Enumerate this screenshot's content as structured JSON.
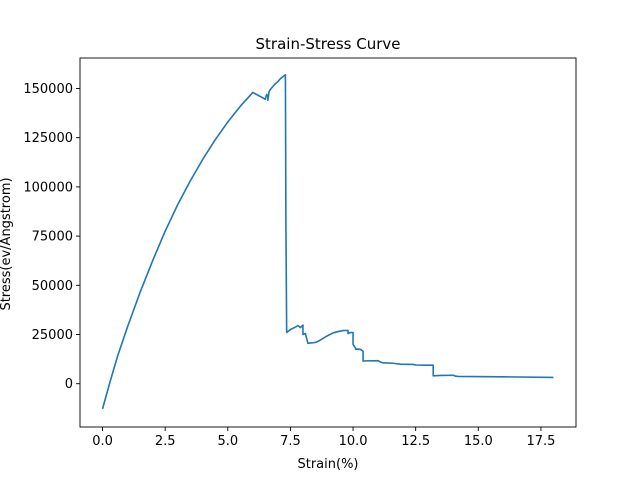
{
  "chart_data": {
    "type": "line",
    "title": "Strain-Stress Curve",
    "xlabel": "Strain(%)",
    "ylabel": "Stress(ev/Angstrom)",
    "xlim": [
      -0.9,
      18.9
    ],
    "ylim": [
      -22000,
      165500
    ],
    "x_ticks": [
      0.0,
      2.5,
      5.0,
      7.5,
      10.0,
      12.5,
      15.0,
      17.5
    ],
    "x_tick_labels": [
      "0.0",
      "2.5",
      "5.0",
      "7.5",
      "10.0",
      "12.5",
      "15.0",
      "17.5"
    ],
    "y_ticks": [
      0,
      25000,
      50000,
      75000,
      100000,
      125000,
      150000
    ],
    "y_tick_labels": [
      "0",
      "25000",
      "50000",
      "75000",
      "100000",
      "125000",
      "150000"
    ],
    "grid": false,
    "legend": "none",
    "colors": {
      "line": "#1f77b4",
      "axes": "#000000",
      "background": "#ffffff"
    },
    "series": [
      {
        "x": [
          0.0,
          0.3,
          0.6,
          1.0,
          1.5,
          2.0,
          2.5,
          3.0,
          3.5,
          4.0,
          4.5,
          5.0,
          5.5,
          6.0,
          6.5,
          6.55,
          6.6,
          6.6,
          6.65,
          6.7,
          6.8,
          6.9,
          7.0,
          7.1,
          7.2,
          7.3,
          7.32,
          7.35,
          7.4,
          7.5,
          7.7,
          7.8,
          7.9,
          8.0,
          8.0,
          8.1,
          8.1,
          8.2,
          8.3,
          8.4,
          8.5,
          8.6,
          8.8,
          9.0,
          9.2,
          9.4,
          9.6,
          9.8,
          9.8,
          9.9,
          10.0,
          10.0,
          10.1,
          10.1,
          10.2,
          10.3,
          10.4,
          10.4,
          10.5,
          11.0,
          11.1,
          11.2,
          11.6,
          11.7,
          11.9,
          12.4,
          12.5,
          12.8,
          13.2,
          13.2,
          13.5,
          14.0,
          14.1,
          14.2,
          16.0,
          18.0
        ],
        "y": [
          -12800,
          1000,
          14000,
          29000,
          46500,
          62500,
          77500,
          91000,
          103000,
          114000,
          124000,
          133000,
          141000,
          148000,
          144500,
          147000,
          146000,
          144000,
          148500,
          149500,
          151000,
          152500,
          153500,
          155000,
          156000,
          157000,
          80000,
          26000,
          26500,
          27500,
          28800,
          29500,
          28500,
          29800,
          25000,
          25500,
          25300,
          20500,
          20700,
          20800,
          21000,
          21500,
          23000,
          24500,
          25800,
          26500,
          27000,
          27100,
          25500,
          26000,
          26000,
          20000,
          18000,
          17500,
          17600,
          17400,
          16500,
          11500,
          11600,
          11700,
          11000,
          10600,
          10400,
          10200,
          9900,
          9800,
          9500,
          9400,
          9400,
          4000,
          4200,
          4300,
          3800,
          3700,
          3500,
          3200
        ]
      }
    ]
  }
}
